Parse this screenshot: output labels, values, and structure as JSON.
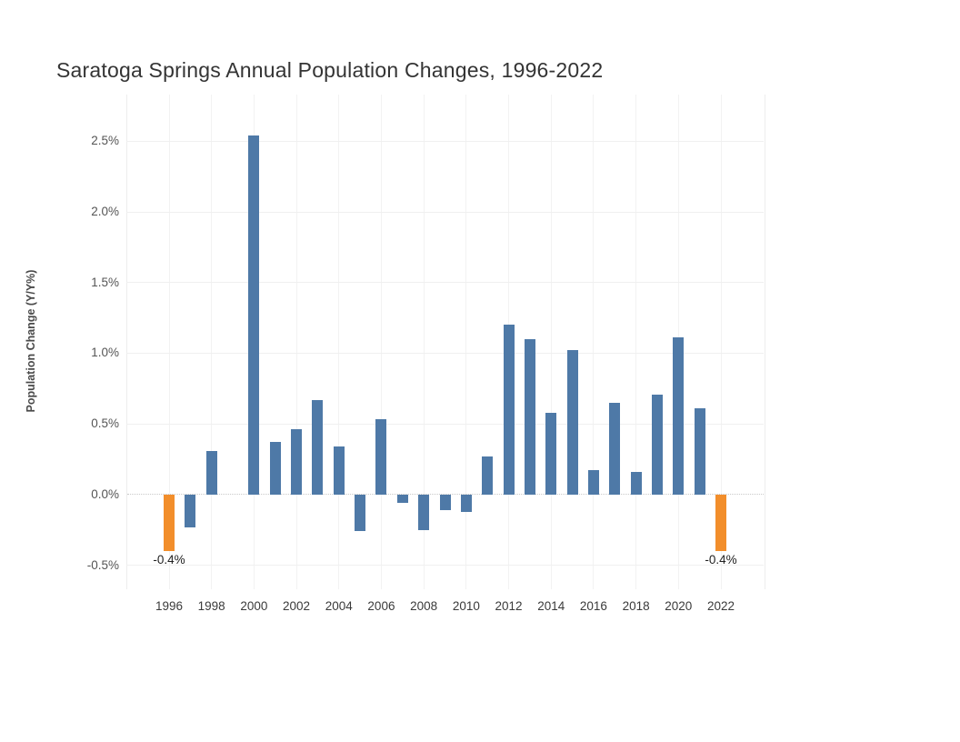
{
  "chart_data": {
    "type": "bar",
    "title": "Saratoga Springs Annual Population Changes, 1996-2022",
    "ylabel": "Population Change (Y/Y%)",
    "xlabel": "",
    "x": [
      1996,
      1997,
      1998,
      1999,
      2000,
      2001,
      2002,
      2003,
      2004,
      2005,
      2006,
      2007,
      2008,
      2009,
      2010,
      2011,
      2012,
      2013,
      2014,
      2015,
      2016,
      2017,
      2018,
      2019,
      2020,
      2021,
      2022
    ],
    "values": [
      -0.4,
      -0.23,
      0.31,
      0.0,
      2.54,
      0.37,
      0.46,
      0.67,
      0.34,
      -0.26,
      0.53,
      -0.06,
      -0.25,
      -0.11,
      -0.12,
      0.27,
      1.2,
      1.1,
      0.58,
      1.02,
      0.17,
      0.65,
      0.16,
      0.71,
      1.11,
      0.61,
      -0.4
    ],
    "x_tick_labels": [
      "1996",
      "1998",
      "2000",
      "2002",
      "2004",
      "2006",
      "2008",
      "2010",
      "2012",
      "2014",
      "2016",
      "2018",
      "2020",
      "2022"
    ],
    "y_ticks": [
      {
        "value": 2.5,
        "label": "2.5%"
      },
      {
        "value": 2.0,
        "label": "2.0%"
      },
      {
        "value": 1.5,
        "label": "1.5%"
      },
      {
        "value": 1.0,
        "label": "1.0%"
      },
      {
        "value": 0.5,
        "label": "0.5%"
      },
      {
        "value": 0.0,
        "label": "0.0%"
      },
      {
        "value": -0.5,
        "label": "-0.5%"
      }
    ],
    "ylim": [
      -0.67,
      2.83
    ],
    "grid": true,
    "zero_line_style": "dotted",
    "legend_position": "none",
    "colors": {
      "bar_default": "#4e79a7",
      "bar_highlight": "#f28e2b",
      "background": "#ffffff"
    },
    "highlighted_years": [
      1996,
      2022
    ],
    "annotations": [
      {
        "year": 1996,
        "label": "-0.4%"
      },
      {
        "year": 2022,
        "label": "-0.4%"
      }
    ]
  }
}
